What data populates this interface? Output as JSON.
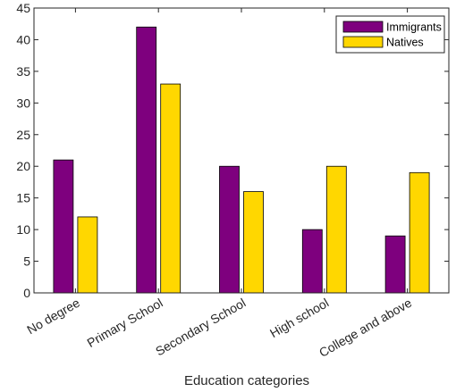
{
  "chart_data": {
    "type": "bar",
    "title": "",
    "xlabel": "Education categories",
    "ylabel": "",
    "categories": [
      "No degree",
      "Primary School",
      "Secondary School",
      "High school",
      "College and above"
    ],
    "series": [
      {
        "name": "Immigrants",
        "values": [
          21,
          42,
          20,
          10,
          9
        ],
        "color": "#7e007e"
      },
      {
        "name": "Natives",
        "values": [
          12,
          33,
          16,
          20,
          19
        ],
        "color": "#ffd700"
      }
    ],
    "ylim": [
      0,
      45
    ],
    "yticks": [
      0,
      5,
      10,
      15,
      20,
      25,
      30,
      35,
      40,
      45
    ],
    "grid": false,
    "legend_position": "top-right",
    "axis_color": "#262626",
    "bar_edge_color": "#000000"
  }
}
